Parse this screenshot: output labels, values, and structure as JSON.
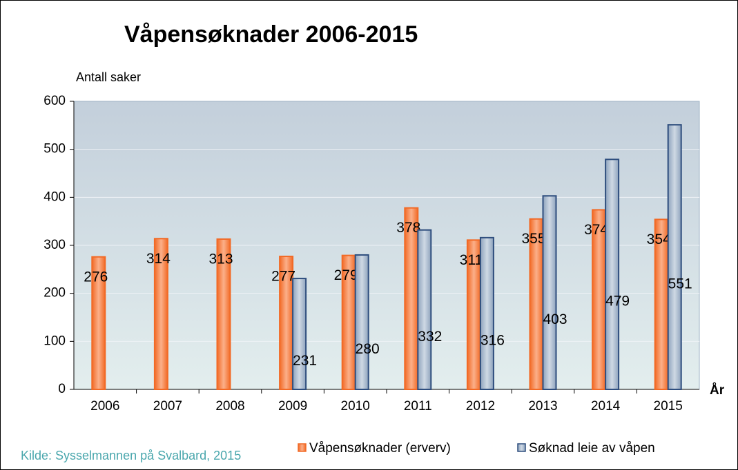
{
  "chart_data": {
    "type": "bar",
    "title": "Våpensøknader 2006-2015",
    "y_label": "Antall saker",
    "x_label": "År",
    "source": "Kilde: Sysselmannen på Svalbard, 2015",
    "categories": [
      "2006",
      "2007",
      "2008",
      "2009",
      "2010",
      "2011",
      "2012",
      "2013",
      "2014",
      "2015"
    ],
    "series": [
      {
        "name": "Våpensøknader (erverv)",
        "color": "#f07b3f",
        "values": [
          276,
          314,
          313,
          277,
          279,
          378,
          311,
          355,
          374,
          354
        ]
      },
      {
        "name": "Søknad leie av våpen",
        "color": "#a9bace",
        "values": [
          null,
          null,
          null,
          231,
          280,
          332,
          316,
          403,
          479,
          551
        ]
      }
    ],
    "ylim": [
      0,
      600
    ],
    "yticks": [
      0,
      100,
      200,
      300,
      400,
      500,
      600
    ],
    "grid": true,
    "legend": "bottom"
  }
}
